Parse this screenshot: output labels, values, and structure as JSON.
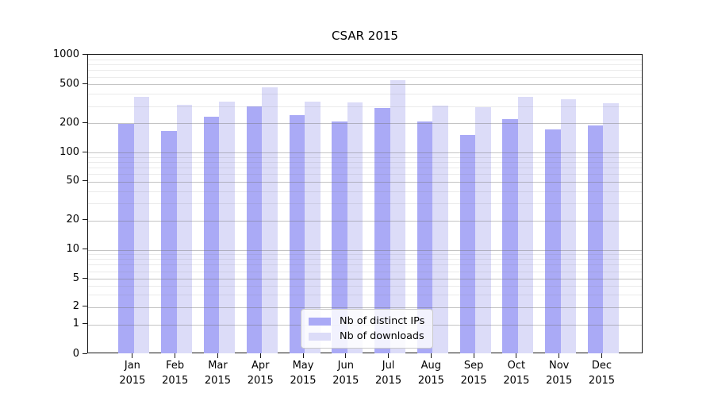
{
  "title": "CSAR 2015",
  "chart_data": {
    "type": "bar",
    "title": "CSAR 2015",
    "categories": [
      "Jan 2015",
      "Feb 2015",
      "Mar 2015",
      "Apr 2015",
      "May 2015",
      "Jun 2015",
      "Jul 2015",
      "Aug 2015",
      "Sep 2015",
      "Oct 2015",
      "Nov 2015",
      "Dec 2015"
    ],
    "x_tick_month": [
      "Jan",
      "Feb",
      "Mar",
      "Apr",
      "May",
      "Jun",
      "Jul",
      "Aug",
      "Sep",
      "Oct",
      "Nov",
      "Dec"
    ],
    "x_tick_year": "2015",
    "series": [
      {
        "name": "Nb of distinct IPs",
        "color": "#aaaaf6",
        "values": [
          198,
          165,
          233,
          298,
          242,
          207,
          284,
          210,
          151,
          220,
          174,
          190
        ]
      },
      {
        "name": "Nb of downloads",
        "color": "#dcdcf8",
        "values": [
          373,
          310,
          336,
          467,
          331,
          325,
          550,
          302,
          290,
          375,
          350,
          319
        ]
      }
    ],
    "yscale": "symlog",
    "ylim": [
      0,
      1000
    ],
    "y_ticks": [
      0,
      1,
      2,
      5,
      10,
      20,
      50,
      100,
      200,
      500,
      1000
    ],
    "y_minor_ticks": [
      3,
      4,
      6,
      7,
      8,
      9,
      30,
      40,
      60,
      70,
      80,
      90,
      300,
      400,
      600,
      700,
      800,
      900
    ],
    "grid": "both",
    "legend_position": "lower center",
    "xlabel": "",
    "ylabel": ""
  },
  "colors": {
    "bar_dark": "#aaaaf6",
    "bar_light": "#dcdcf8",
    "grid_major": "#c6c6c6",
    "grid_minor": "#ececec",
    "spine": "#1a1a1a",
    "background": "#ffffff"
  }
}
